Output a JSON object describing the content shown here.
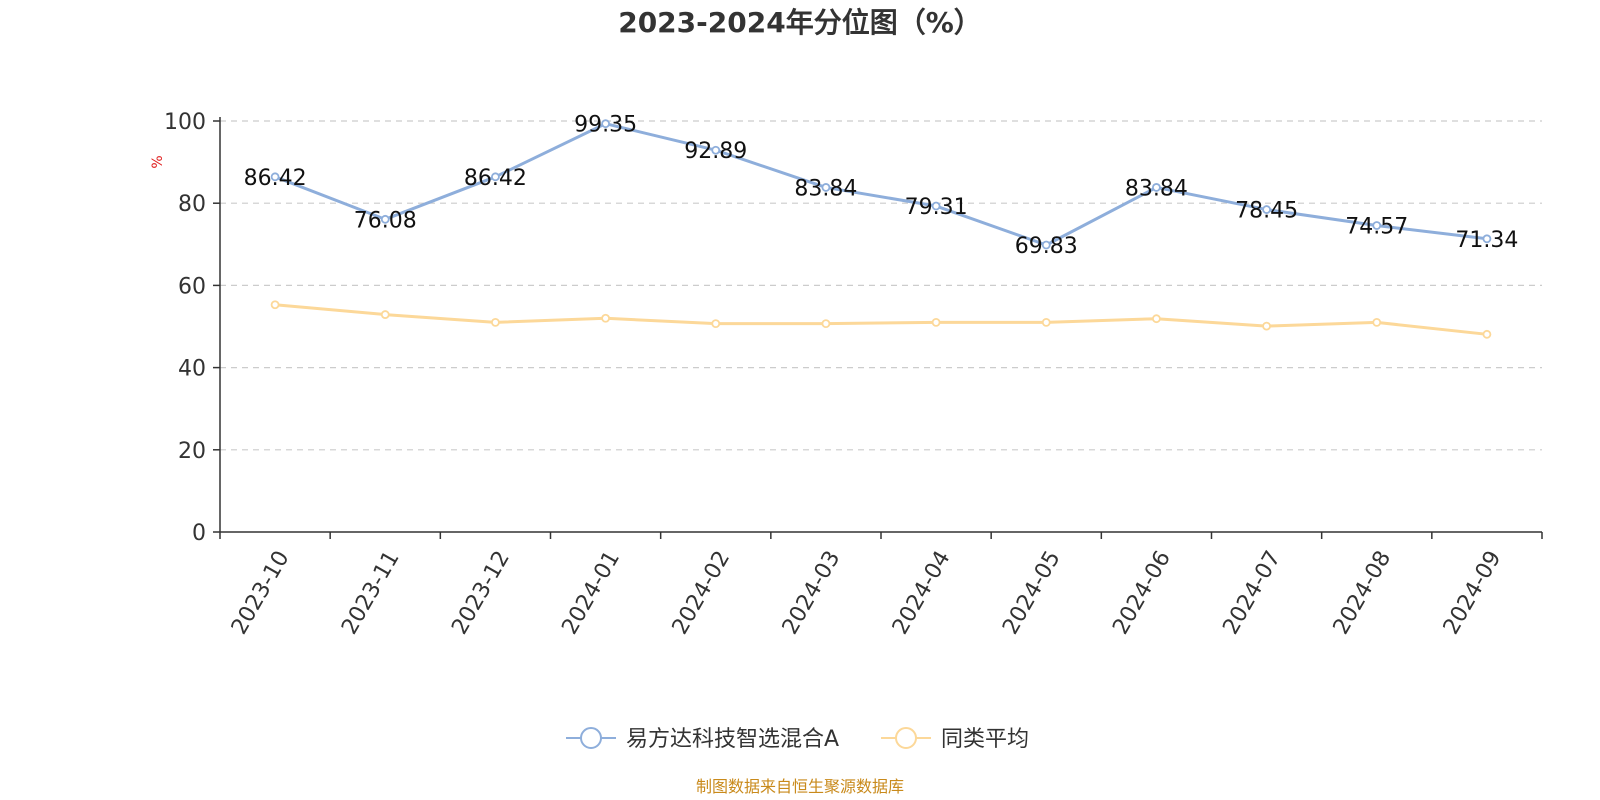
{
  "title": "2023-2024年分位图（%）",
  "source": "制图数据来自恒生聚源数据库",
  "colors": {
    "series_a": "#8eaedb",
    "series_b": "#fcd899",
    "unit": "#e01f1f",
    "source": "#c98a1b"
  },
  "chart_data": {
    "type": "line",
    "title": "2023-2024年分位图（%）",
    "xlabel": "",
    "ylabel": "%",
    "ylim": [
      0,
      100
    ],
    "yticks": [
      "0",
      "20",
      "40",
      "60",
      "80",
      "100"
    ],
    "grid": true,
    "legend_position": "bottom",
    "categories": [
      "2023-10",
      "2023-11",
      "2023-12",
      "2024-01",
      "2024-02",
      "2024-03",
      "2024-04",
      "2024-05",
      "2024-06",
      "2024-07",
      "2024-08",
      "2024-09"
    ],
    "series": [
      {
        "name": "易方达科技智选混合A",
        "values": [
          86.42,
          76.08,
          86.42,
          99.35,
          92.89,
          83.84,
          79.31,
          69.83,
          83.84,
          78.45,
          74.57,
          71.34
        ],
        "labels": [
          "86.42",
          "76.08",
          "86.42",
          "99.35",
          "92.89",
          "83.84",
          "79.31",
          "69.83",
          "83.84",
          "78.45",
          "74.57",
          "71.34"
        ],
        "show_labels": true
      },
      {
        "name": "同类平均",
        "values": [
          55.3,
          52.9,
          51.0,
          52.0,
          50.7,
          50.7,
          51.0,
          51.0,
          51.9,
          50.1,
          51.0,
          48.1
        ],
        "show_labels": false
      }
    ]
  }
}
